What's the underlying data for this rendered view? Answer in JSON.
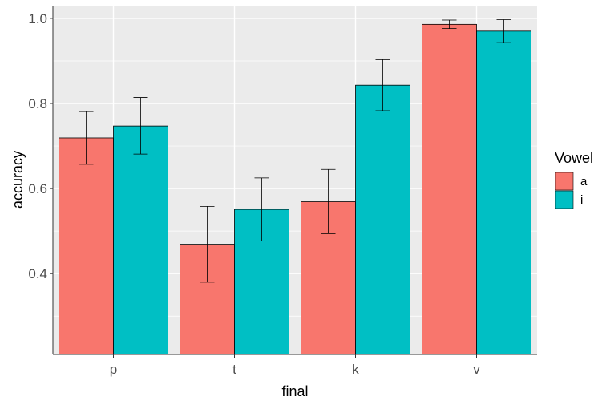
{
  "chart_data": {
    "type": "bar",
    "xlabel": "final",
    "ylabel": "accuracy",
    "categories": [
      "p",
      "t",
      "k",
      "v"
    ],
    "series": [
      {
        "name": "a",
        "color": "#F8766D",
        "values": [
          0.719,
          0.469,
          0.569,
          0.986
        ],
        "err_low": [
          0.657,
          0.38,
          0.494,
          0.976
        ],
        "err_high": [
          0.781,
          0.558,
          0.645,
          0.996
        ]
      },
      {
        "name": "i",
        "color": "#00BFC4",
        "values": [
          0.747,
          0.551,
          0.843,
          0.97
        ],
        "err_low": [
          0.681,
          0.477,
          0.783,
          0.943
        ],
        "err_high": [
          0.814,
          0.625,
          0.903,
          0.997
        ]
      }
    ],
    "ylim": [
      0.21,
      1.03
    ],
    "yticks": [
      "0.4",
      "0.6",
      "0.8",
      "1.0"
    ],
    "legend_title": "Vowel",
    "legend_position": "right",
    "grid": true,
    "panel_background": "#EBEBEB"
  }
}
